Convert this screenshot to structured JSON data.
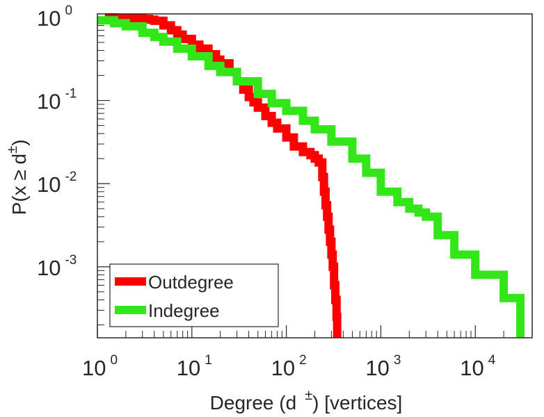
{
  "chart_data": {
    "type": "line",
    "title": "",
    "xlabel": {
      "prefix": "Degree (d",
      "sup": "±",
      "suffix": ") [vertices]"
    },
    "ylabel": {
      "prefix": "P(x ≥ d",
      "sup": "±",
      "suffix": ")"
    },
    "xscale": "log",
    "yscale": "log",
    "xlim": [
      1,
      40000
    ],
    "ylim": [
      0.00014,
      1.1
    ],
    "grid": false,
    "legend_position": "bottom-left",
    "x_ticks": [
      {
        "value": 1,
        "base": "10",
        "exp": "0"
      },
      {
        "value": 10,
        "base": "10",
        "exp": "1"
      },
      {
        "value": 100,
        "base": "10",
        "exp": "2"
      },
      {
        "value": 1000,
        "base": "10",
        "exp": "3"
      },
      {
        "value": 10000,
        "base": "10",
        "exp": "4"
      }
    ],
    "y_ticks": [
      {
        "value": 1,
        "base": "10",
        "exp": "0"
      },
      {
        "value": 0.1,
        "base": "10",
        "exp": "-1"
      },
      {
        "value": 0.01,
        "base": "10",
        "exp": "-2"
      },
      {
        "value": 0.001,
        "base": "10",
        "exp": "-3"
      }
    ],
    "series": [
      {
        "name": "Outdegree",
        "color": "#ff0000",
        "x": [
          1.2,
          1.5,
          2,
          2.5,
          3,
          3.5,
          4,
          5,
          6,
          7,
          8,
          10,
          12,
          15,
          18,
          20,
          25,
          30,
          35,
          40,
          45,
          50,
          60,
          70,
          80,
          100,
          120,
          150,
          180,
          200,
          220,
          240,
          250,
          260,
          270,
          280,
          290,
          300,
          310,
          320,
          330,
          340,
          345
        ],
        "y": [
          1.0,
          0.99,
          0.98,
          0.97,
          0.96,
          0.94,
          0.91,
          0.8,
          0.7,
          0.62,
          0.55,
          0.47,
          0.42,
          0.36,
          0.31,
          0.28,
          0.22,
          0.17,
          0.135,
          0.11,
          0.095,
          0.082,
          0.065,
          0.054,
          0.046,
          0.036,
          0.028,
          0.024,
          0.022,
          0.02,
          0.018,
          0.012,
          0.008,
          0.0055,
          0.004,
          0.0028,
          0.002,
          0.0014,
          0.001,
          0.0006,
          0.0004,
          0.00025,
          0.00014
        ]
      },
      {
        "name": "Indegree",
        "color": "#33e61a",
        "x": [
          1,
          1.5,
          2,
          3,
          4,
          5,
          7,
          10,
          15,
          20,
          30,
          50,
          70,
          100,
          150,
          200,
          300,
          500,
          700,
          1000,
          1500,
          2000,
          2500,
          3000,
          4000,
          6000,
          10000,
          20000,
          30000
        ],
        "y": [
          0.92,
          0.85,
          0.78,
          0.65,
          0.58,
          0.51,
          0.42,
          0.34,
          0.26,
          0.22,
          0.17,
          0.12,
          0.093,
          0.075,
          0.057,
          0.045,
          0.032,
          0.02,
          0.0135,
          0.008,
          0.006,
          0.005,
          0.0045,
          0.004,
          0.0024,
          0.0014,
          0.0008,
          0.00042,
          0.00014
        ]
      }
    ]
  }
}
